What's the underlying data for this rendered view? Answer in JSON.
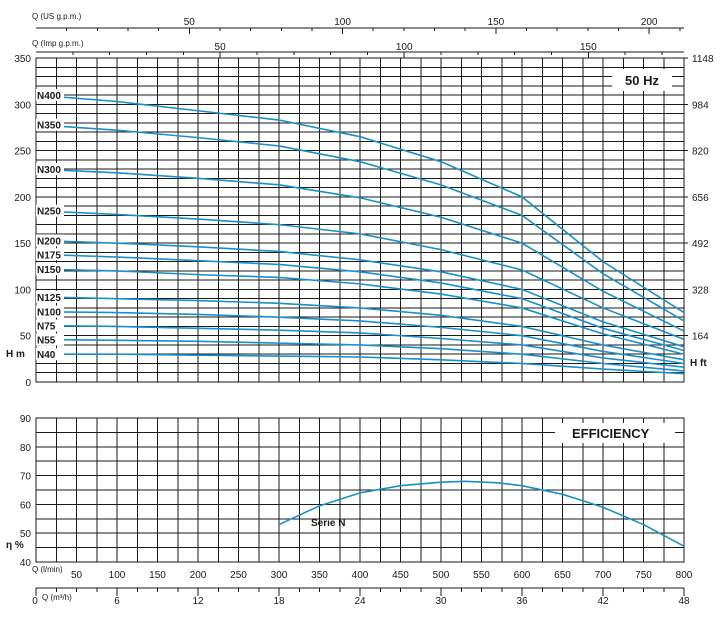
{
  "chart_data": [
    {
      "type": "line",
      "title_box": "50 Hz",
      "x_top_1": {
        "label": "Q (US g.p.m.)",
        "ticks": [
          "50",
          "100",
          "150",
          "200"
        ]
      },
      "x_top_2": {
        "label": "Q (Imp g.p.m.)",
        "ticks": [
          "50",
          "100",
          "150"
        ]
      },
      "y_left": {
        "label": "H m",
        "ticks": [
          "0",
          "50",
          "100",
          "150",
          "200",
          "250",
          "300",
          "350"
        ],
        "ylim": [
          0,
          350
        ]
      },
      "y_right": {
        "label": "H ft",
        "ticks": [
          "164",
          "328",
          "492",
          "656",
          "820",
          "984",
          "1148"
        ]
      },
      "xlim": [
        0,
        800
      ],
      "x": [
        0,
        100,
        200,
        300,
        400,
        500,
        600,
        700,
        800
      ],
      "series": [
        {
          "name": "N400",
          "values": [
            310,
            303,
            293,
            283,
            265,
            238,
            200,
            130,
            75
          ]
        },
        {
          "name": "N350",
          "values": [
            278,
            272,
            264,
            255,
            238,
            213,
            180,
            117,
            66
          ]
        },
        {
          "name": "N300",
          "values": [
            230,
            226,
            220,
            213,
            199,
            178,
            150,
            98,
            55
          ]
        },
        {
          "name": "N250",
          "values": [
            185,
            181,
            176,
            170,
            160,
            143,
            121,
            80,
            46
          ]
        },
        {
          "name": "N200",
          "values": [
            153,
            150,
            146,
            141,
            132,
            119,
            100,
            65,
            38
          ]
        },
        {
          "name": "N175",
          "values": [
            138,
            135,
            131,
            127,
            119,
            107,
            90,
            58,
            34
          ]
        },
        {
          "name": "N150",
          "values": [
            122,
            120,
            116,
            113,
            106,
            95,
            80,
            52,
            30
          ]
        },
        {
          "name": "N125",
          "values": [
            92,
            90,
            88,
            85,
            80,
            72,
            60,
            40,
            24
          ]
        },
        {
          "name": "N100",
          "values": [
            76,
            75,
            73,
            70,
            66,
            59,
            50,
            33,
            20
          ]
        },
        {
          "name": "N75",
          "values": [
            61,
            60,
            58,
            56,
            53,
            47,
            40,
            26,
            16
          ]
        },
        {
          "name": "N55",
          "values": [
            46,
            45,
            44,
            42,
            40,
            36,
            30,
            20,
            12
          ]
        },
        {
          "name": "N40",
          "values": [
            30,
            30,
            29,
            28,
            27,
            24,
            20,
            14,
            9
          ]
        }
      ]
    },
    {
      "type": "line",
      "title_box": "EFFICIENCY",
      "y_left": {
        "label": "η %",
        "ticks": [
          "40",
          "50",
          "60",
          "70",
          "80",
          "90"
        ],
        "ylim": [
          40,
          90
        ]
      },
      "x_bottom_1": {
        "label": "Q (l/min)",
        "ticks": [
          "50",
          "100",
          "150",
          "200",
          "250",
          "300",
          "350",
          "400",
          "450",
          "500",
          "550",
          "600",
          "650",
          "700",
          "750",
          "800"
        ]
      },
      "x_bottom_2": {
        "label": "Q (m³/h)",
        "ticks": [
          "0",
          "6",
          "12",
          "18",
          "24",
          "30",
          "36",
          "42",
          "48"
        ]
      },
      "xlim": [
        0,
        800
      ],
      "series": [
        {
          "name": "Serie N",
          "x": [
            300,
            350,
            400,
            450,
            500,
            530,
            570,
            600,
            650,
            700,
            750,
            800
          ],
          "values": [
            53,
            59.5,
            64,
            66.5,
            67.7,
            68,
            67.5,
            66.5,
            63.5,
            59,
            53,
            45.5
          ]
        }
      ]
    }
  ]
}
